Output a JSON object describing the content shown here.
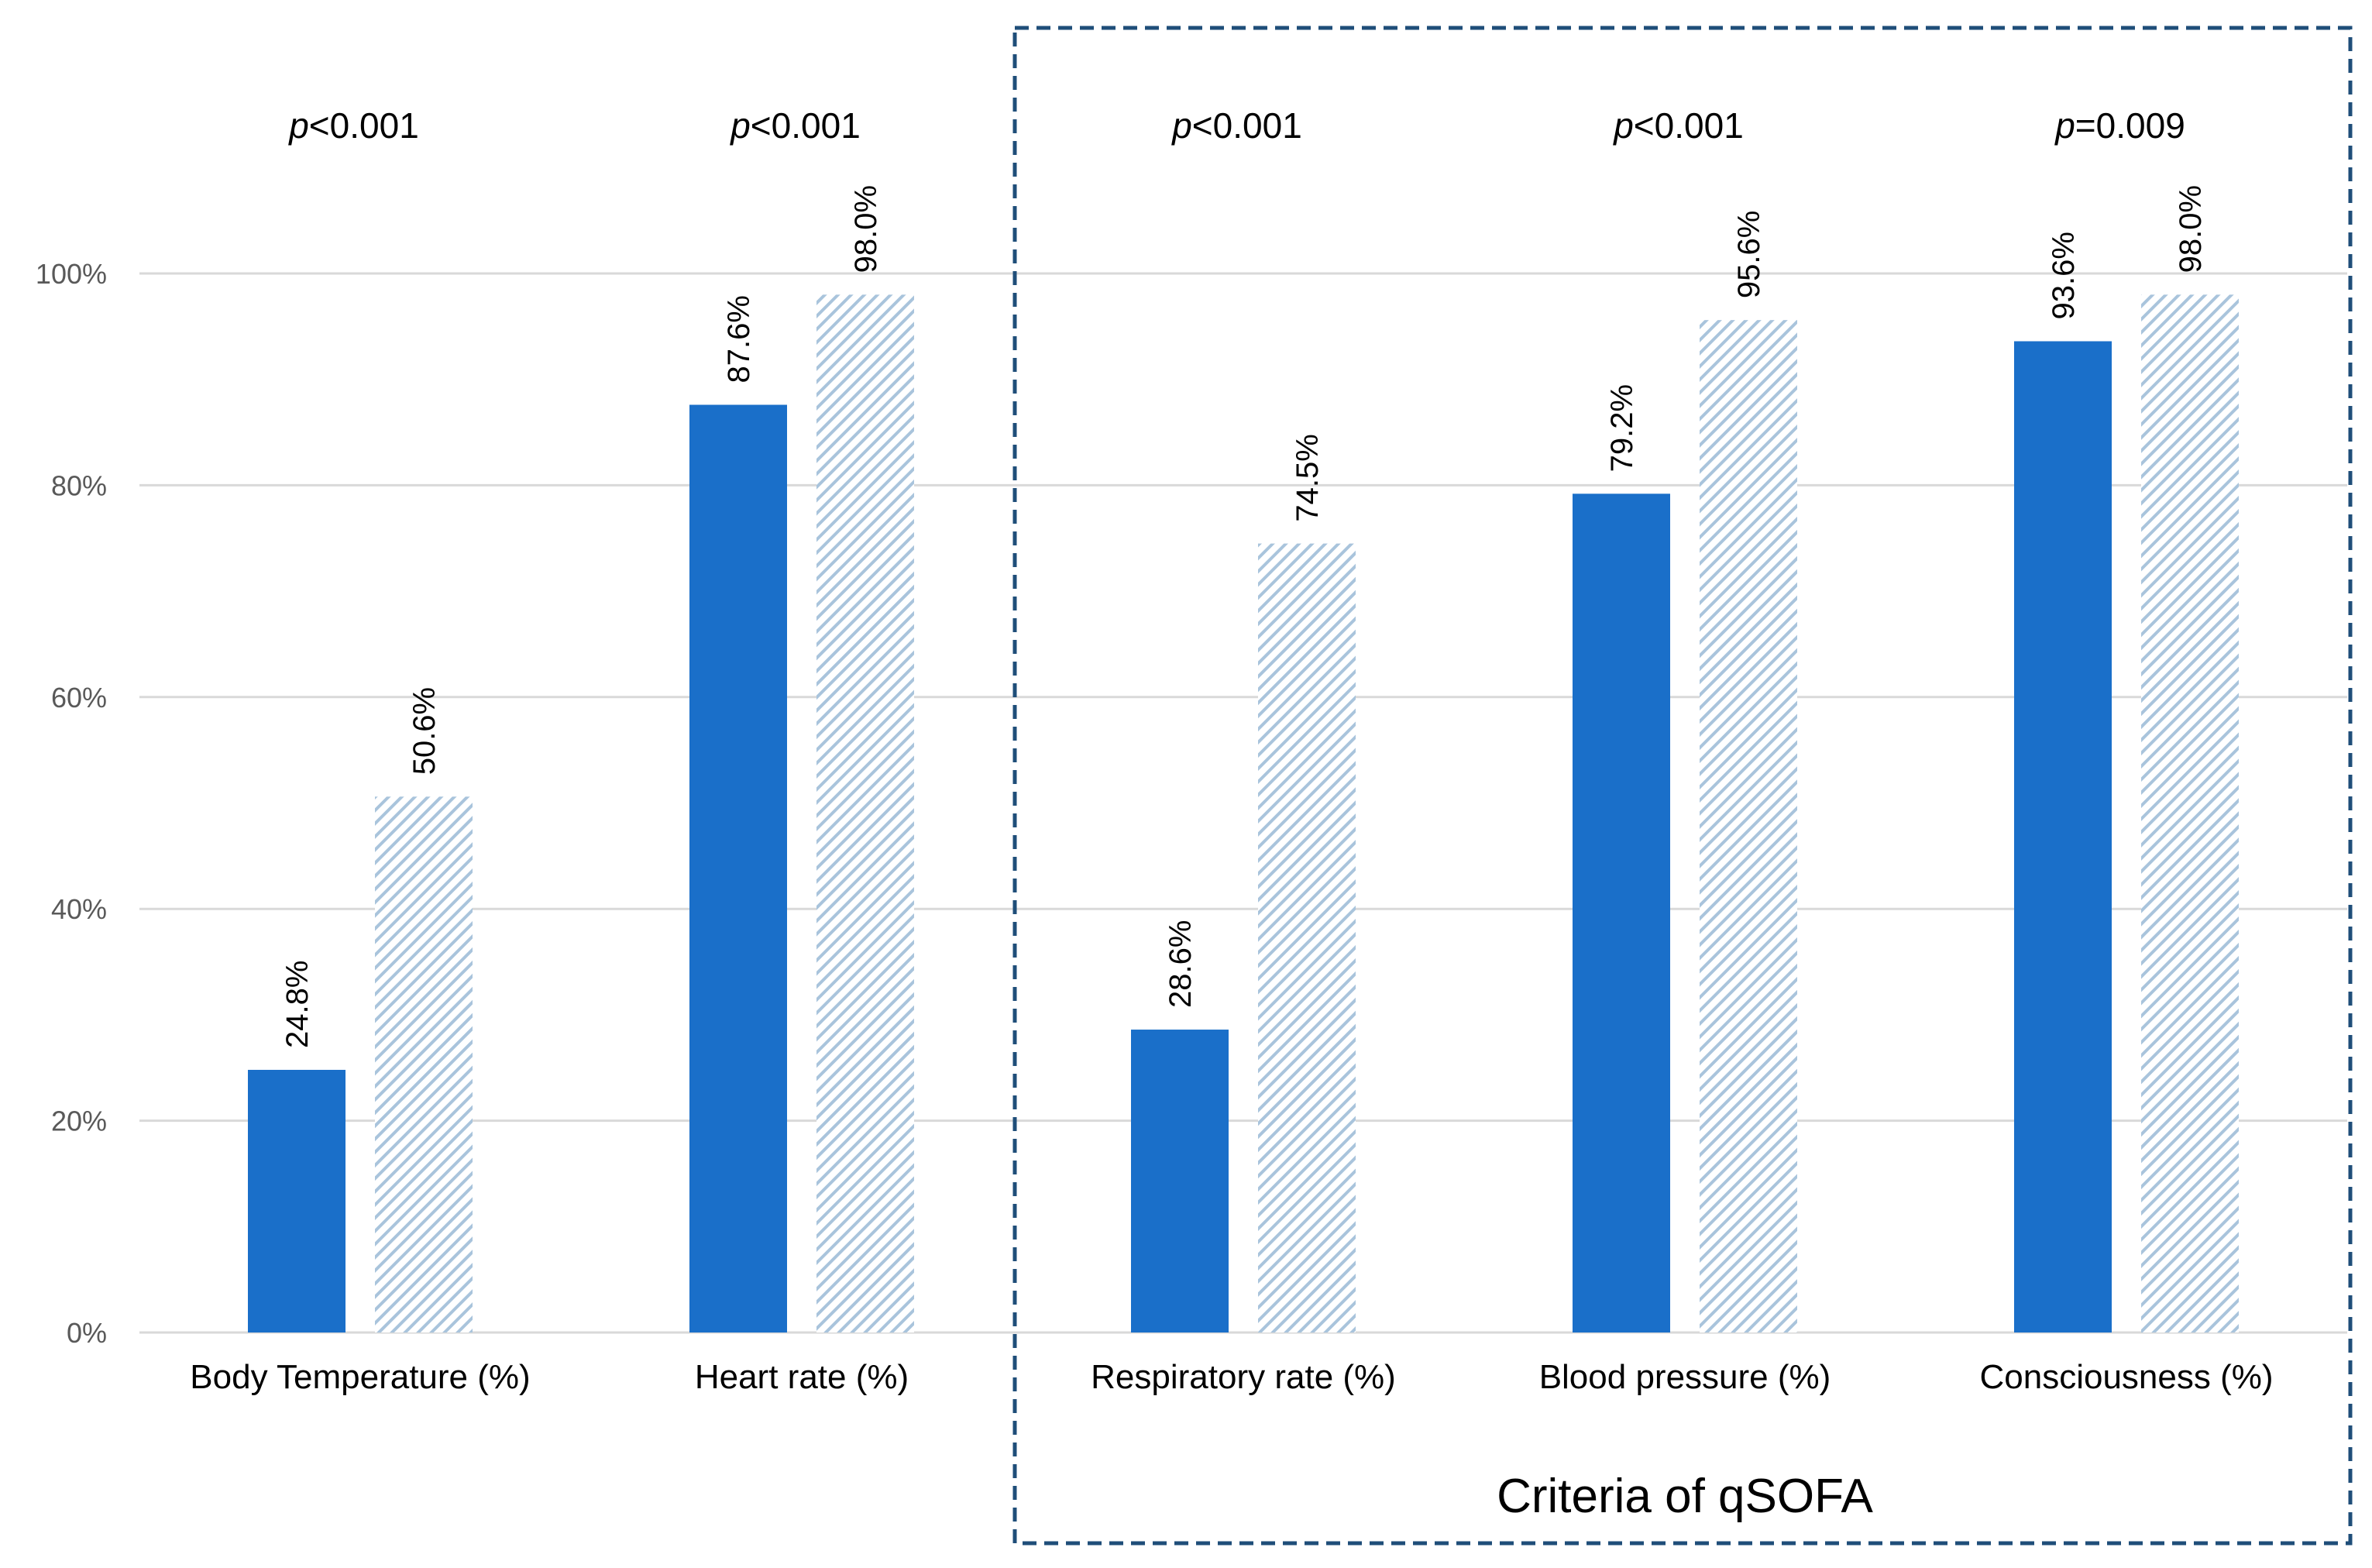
{
  "chart_data": {
    "type": "bar",
    "categories": [
      "Body Temperature (%)",
      "Heart rate (%)",
      "Respiratory rate (%)",
      "Blood pressure (%)",
      "Consciousness (%)"
    ],
    "series": [
      {
        "name": "Series 1",
        "color": "#1a6fc9",
        "style": "solid",
        "values": [
          24.8,
          87.6,
          28.6,
          79.2,
          93.6
        ],
        "labels": [
          "24.8%",
          "87.6%",
          "28.6%",
          "79.2%",
          "93.6%"
        ]
      },
      {
        "name": "Series 2",
        "color": "#a9c4dc",
        "style": "hatched",
        "values": [
          50.6,
          98.0,
          74.5,
          95.6,
          98.0
        ],
        "labels": [
          "50.6%",
          "98.0%",
          "74.5%",
          "95.6%",
          "98.0%"
        ]
      }
    ],
    "p_values": [
      {
        "prefix": "p",
        "text": "<0.001"
      },
      {
        "prefix": "p",
        "text": "<0.001"
      },
      {
        "prefix": "p",
        "text": "<0.001"
      },
      {
        "prefix": "p",
        "text": "<0.001"
      },
      {
        "prefix": "p",
        "text": "=0.009"
      }
    ],
    "y_ticks": [
      0,
      20,
      40,
      60,
      80,
      100
    ],
    "y_tick_labels": [
      "0%",
      "20%",
      "40%",
      "60%",
      "80%",
      "100%"
    ],
    "ylim": [
      0,
      100
    ],
    "grid": true,
    "annotation": {
      "text": "Criteria of qSOFA",
      "covers_categories": [
        2,
        3,
        4
      ],
      "style": "dashed box"
    }
  }
}
